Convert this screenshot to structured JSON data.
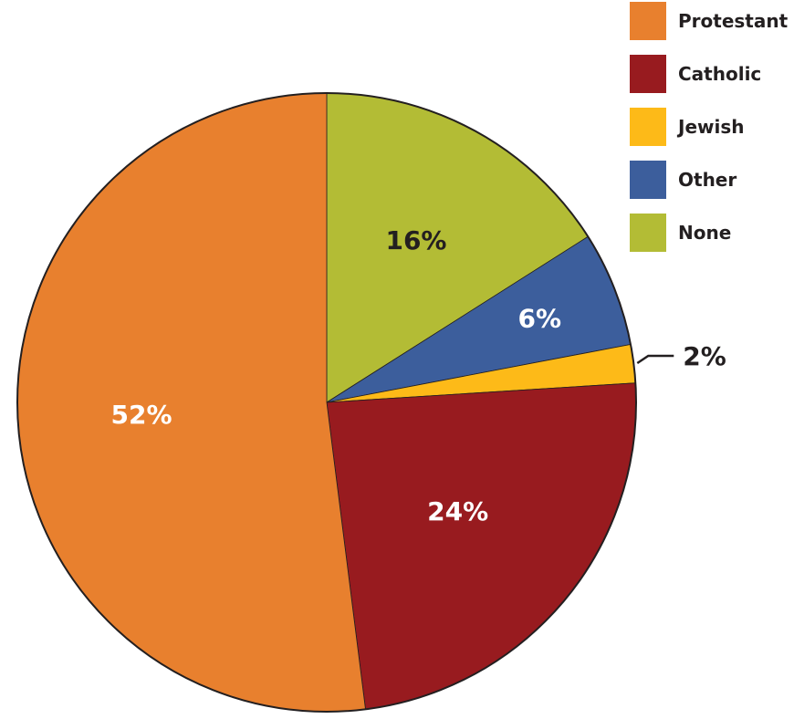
{
  "chart_data": {
    "type": "pie",
    "title": "",
    "slices": [
      {
        "name": "Protestant",
        "value": 52,
        "label": "52%",
        "color": "#E8802E",
        "label_color": "#ffffff"
      },
      {
        "name": "Catholic",
        "value": 24,
        "label": "24%",
        "color": "#981B1F",
        "label_color": "#ffffff"
      },
      {
        "name": "Jewish",
        "value": 2,
        "label": "2%",
        "color": "#FDBA18",
        "label_color": "#231F20"
      },
      {
        "name": "Other",
        "value": 6,
        "label": "6%",
        "color": "#3C5E9C",
        "label_color": "#ffffff"
      },
      {
        "name": "None",
        "value": 16,
        "label": "16%",
        "color": "#B3BC35",
        "label_color": "#231F20"
      }
    ],
    "legend": {
      "placement": "top-right",
      "entries": [
        "Protestant",
        "Catholic",
        "Jewish",
        "Other",
        "None"
      ]
    }
  }
}
